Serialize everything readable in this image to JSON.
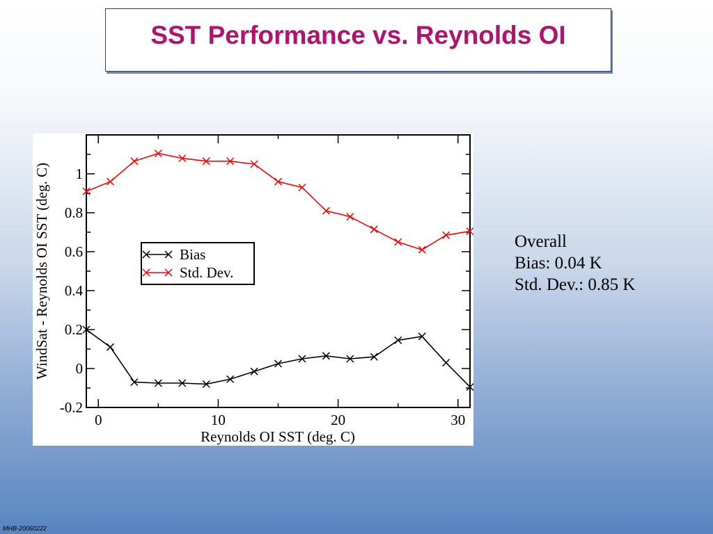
{
  "slide": {
    "title": "SST Performance vs. Reynolds OI",
    "footer": "MHB-20060222"
  },
  "overall": {
    "heading": "Overall",
    "bias": "Bias: 0.04 K",
    "std_dev": "Std. Dev.: 0.85 K"
  },
  "colors": {
    "title": "#b0126e",
    "bias_series": "#000000",
    "std_series": "#ff0000"
  },
  "chart_data": {
    "type": "line",
    "xlabel": "Reynolds OI SST (deg. C)",
    "ylabel": "WindSat - Reynolds OI SST (deg. C)",
    "xlim": [
      -1,
      31
    ],
    "ylim": [
      -0.2,
      1.2
    ],
    "xticks": [
      0,
      10,
      20,
      30
    ],
    "xtick_labels": [
      "0",
      "10",
      "20",
      "30"
    ],
    "yticks": [
      -0.2,
      0,
      0.2,
      0.4,
      0.6,
      0.8,
      1
    ],
    "ytick_labels": [
      "-0.2",
      "0",
      "0.2",
      "0.4",
      "0.6",
      "0.8",
      "1"
    ],
    "grid": false,
    "legend": "center-left",
    "series": [
      {
        "name": "Bias",
        "color": "#000000",
        "marker": "x",
        "x": [
          -1,
          1,
          3,
          5,
          7,
          9,
          11,
          13,
          15,
          17,
          19,
          21,
          23,
          25,
          27,
          29,
          31
        ],
        "y": [
          0.2,
          0.11,
          -0.07,
          -0.075,
          -0.075,
          -0.08,
          -0.055,
          -0.015,
          0.025,
          0.05,
          0.065,
          0.05,
          0.06,
          0.145,
          0.165,
          0.03,
          -0.095
        ]
      },
      {
        "name": "Std. Dev.",
        "color": "#ff0000",
        "marker": "x",
        "x": [
          -1,
          1,
          3,
          5,
          7,
          9,
          11,
          13,
          15,
          17,
          19,
          21,
          23,
          25,
          27,
          29,
          31
        ],
        "y": [
          0.91,
          0.96,
          1.065,
          1.105,
          1.08,
          1.065,
          1.065,
          1.05,
          0.96,
          0.93,
          0.81,
          0.78,
          0.715,
          0.65,
          0.61,
          0.685,
          0.705
        ]
      }
    ]
  }
}
